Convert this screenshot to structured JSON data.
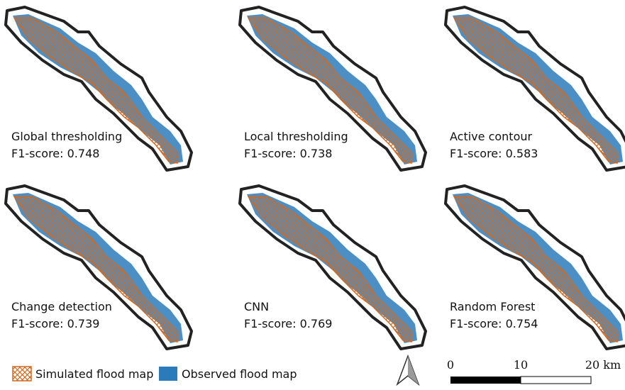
{
  "panels": [
    {
      "title": "Global thresholding",
      "score": "F1-score: 0.748"
    },
    {
      "title": "Local thresholding",
      "score": "F1-score: 0.738"
    },
    {
      "title": "Active contour",
      "score": "F1-score: 0.583"
    },
    {
      "title": "Change detection",
      "score": "F1-score: 0.739"
    },
    {
      "title": "CNN",
      "score": "F1-score: 0.769"
    },
    {
      "title": "Random Forest",
      "score": "F1-score: 0.754"
    }
  ],
  "legend": {
    "items": [
      {
        "label": "Simulated flood map"
      },
      {
        "label": "Observed flood map"
      }
    ]
  },
  "scale_bar": {
    "labels": [
      "0",
      "10",
      "20 km"
    ]
  }
}
